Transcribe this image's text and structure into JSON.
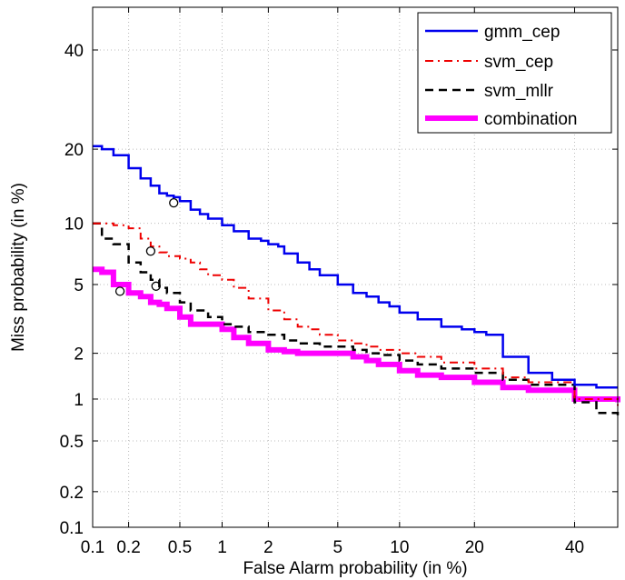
{
  "chart_data": {
    "type": "line",
    "chart_kind": "DET curve",
    "xlabel": "False Alarm probability (in %)",
    "ylabel": "Miss probability (in %)",
    "x_scale": "probit",
    "y_scale": "probit",
    "xlim": [
      0.1,
      50
    ],
    "ylim": [
      0.1,
      50
    ],
    "x_ticks": [
      {
        "value": 0.1,
        "label": "0.1"
      },
      {
        "value": 0.2,
        "label": "0.2"
      },
      {
        "value": 0.5,
        "label": "0.5"
      },
      {
        "value": 1,
        "label": "1"
      },
      {
        "value": 2,
        "label": "2"
      },
      {
        "value": 5,
        "label": "5"
      },
      {
        "value": 10,
        "label": "10"
      },
      {
        "value": 20,
        "label": "20"
      },
      {
        "value": 40,
        "label": "40"
      }
    ],
    "y_ticks": [
      {
        "value": 0.1,
        "label": "0.1"
      },
      {
        "value": 0.2,
        "label": "0.2"
      },
      {
        "value": 0.5,
        "label": "0.5"
      },
      {
        "value": 1,
        "label": "1"
      },
      {
        "value": 2,
        "label": "2"
      },
      {
        "value": 5,
        "label": "5"
      },
      {
        "value": 10,
        "label": "10"
      },
      {
        "value": 20,
        "label": "20"
      },
      {
        "value": 40,
        "label": "40"
      }
    ],
    "grid": true,
    "legend_position": "top-right",
    "series": [
      {
        "name": "gmm_cep",
        "color": "#0000ee",
        "line_style": "solid",
        "line_width": 2.5,
        "x": [
          0.1,
          0.12,
          0.15,
          0.2,
          0.25,
          0.3,
          0.35,
          0.4,
          0.45,
          0.5,
          0.6,
          0.7,
          0.8,
          1.0,
          1.2,
          1.5,
          1.8,
          2.0,
          2.3,
          2.5,
          3.0,
          3.5,
          4.0,
          5.0,
          6.0,
          7.0,
          8.0,
          9.0,
          10.0,
          12.0,
          15.0,
          18.0,
          20.0,
          22.0,
          25.0,
          30.0,
          35.0,
          40.0,
          45.0,
          50.0
        ],
        "y": [
          20.5,
          20.0,
          19.0,
          17.0,
          15.5,
          14.5,
          13.5,
          13.2,
          13.0,
          12.5,
          11.5,
          11.0,
          10.5,
          9.8,
          9.2,
          8.5,
          8.3,
          8.0,
          7.8,
          7.2,
          6.5,
          6.0,
          5.6,
          5.0,
          4.5,
          4.3,
          4.0,
          3.8,
          3.5,
          3.2,
          2.9,
          2.8,
          2.7,
          2.6,
          1.9,
          1.5,
          1.35,
          1.25,
          1.2,
          1.2
        ],
        "marker": {
          "x": 0.45,
          "y": 12.3
        }
      },
      {
        "name": "svm_cep",
        "color": "#ee0000",
        "line_style": "dashdot",
        "line_width": 2,
        "x": [
          0.1,
          0.15,
          0.2,
          0.25,
          0.3,
          0.35,
          0.4,
          0.5,
          0.6,
          0.7,
          0.8,
          1.0,
          1.2,
          1.5,
          2.0,
          2.5,
          3.0,
          3.5,
          4.0,
          5.0,
          6.0,
          7.0,
          8.0,
          10.0,
          12.0,
          15.0,
          20.0,
          25.0,
          30.0,
          40.0,
          50.0
        ],
        "y": [
          10.0,
          9.8,
          9.5,
          8.5,
          7.8,
          7.3,
          7.0,
          6.8,
          6.5,
          6.0,
          5.6,
          5.3,
          4.8,
          4.2,
          3.6,
          3.2,
          2.9,
          2.8,
          2.6,
          2.4,
          2.3,
          2.2,
          2.1,
          2.0,
          1.9,
          1.75,
          1.6,
          1.4,
          1.3,
          1.0,
          0.9
        ],
        "marker": {
          "x": 0.3,
          "y": 7.4
        }
      },
      {
        "name": "svm_mllr",
        "color": "#000000",
        "line_style": "dashed",
        "line_width": 2.5,
        "x": [
          0.1,
          0.12,
          0.15,
          0.2,
          0.25,
          0.3,
          0.35,
          0.4,
          0.5,
          0.6,
          0.8,
          1.0,
          1.2,
          1.5,
          2.0,
          2.5,
          3.0,
          4.0,
          5.0,
          6.0,
          7.0,
          8.0,
          10.0,
          12.0,
          15.0,
          20.0,
          25.0,
          30.0,
          40.0,
          45.0,
          50.0
        ],
        "y": [
          10.0,
          8.5,
          8.0,
          6.5,
          5.8,
          5.3,
          4.8,
          4.5,
          4.0,
          3.6,
          3.3,
          3.0,
          2.9,
          2.7,
          2.6,
          2.4,
          2.3,
          2.2,
          2.2,
          2.1,
          2.0,
          1.95,
          1.8,
          1.7,
          1.6,
          1.5,
          1.35,
          1.25,
          0.95,
          0.8,
          0.75
        ],
        "marker": {
          "x": 0.33,
          "y": 4.9
        }
      },
      {
        "name": "combination",
        "color": "#ff00ff",
        "line_style": "solid",
        "line_width": 6,
        "x": [
          0.1,
          0.12,
          0.15,
          0.2,
          0.25,
          0.3,
          0.35,
          0.4,
          0.5,
          0.6,
          0.8,
          1.0,
          1.2,
          1.5,
          2.0,
          2.5,
          3.0,
          4.0,
          5.0,
          6.0,
          7.0,
          8.0,
          10.0,
          12.0,
          15.0,
          20.0,
          25.0,
          30.0,
          40.0,
          50.0
        ],
        "y": [
          6.0,
          5.8,
          5.0,
          4.5,
          4.3,
          4.0,
          3.9,
          3.7,
          3.3,
          3.0,
          3.0,
          2.8,
          2.5,
          2.3,
          2.1,
          2.05,
          2.0,
          2.0,
          2.0,
          1.9,
          1.8,
          1.7,
          1.55,
          1.45,
          1.4,
          1.3,
          1.2,
          1.15,
          1.0,
          0.95
        ],
        "marker": {
          "x": 0.17,
          "y": 4.6
        }
      }
    ]
  }
}
